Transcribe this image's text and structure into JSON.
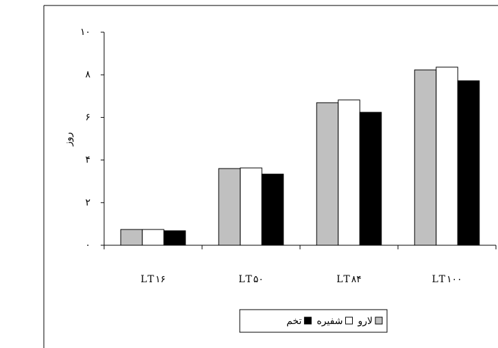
{
  "chart_data": {
    "type": "bar",
    "y_label": "روز",
    "categories": [
      "LT۱۶",
      "LT۵۰",
      "LT۸۴",
      "LT۱۰۰"
    ],
    "series": [
      {
        "name": "لارو",
        "color": "#c0c0c0",
        "values": [
          0.74,
          3.6,
          6.69,
          8.23
        ]
      },
      {
        "name": "شفیره",
        "color": "#ffffff",
        "values": [
          0.74,
          3.63,
          6.82,
          8.36
        ]
      },
      {
        "name": "تخم",
        "color": "#000000",
        "values": [
          0.68,
          3.34,
          6.24,
          7.72
        ]
      }
    ],
    "ylim": [
      0,
      10
    ],
    "yticks": [
      {
        "value": 0,
        "label": "۰"
      },
      {
        "value": 2,
        "label": "۲"
      },
      {
        "value": 4,
        "label": "۴"
      },
      {
        "value": 6,
        "label": "۶"
      },
      {
        "value": 8,
        "label": "۸"
      },
      {
        "value": 10,
        "label": "۱۰"
      }
    ],
    "grid": false
  }
}
